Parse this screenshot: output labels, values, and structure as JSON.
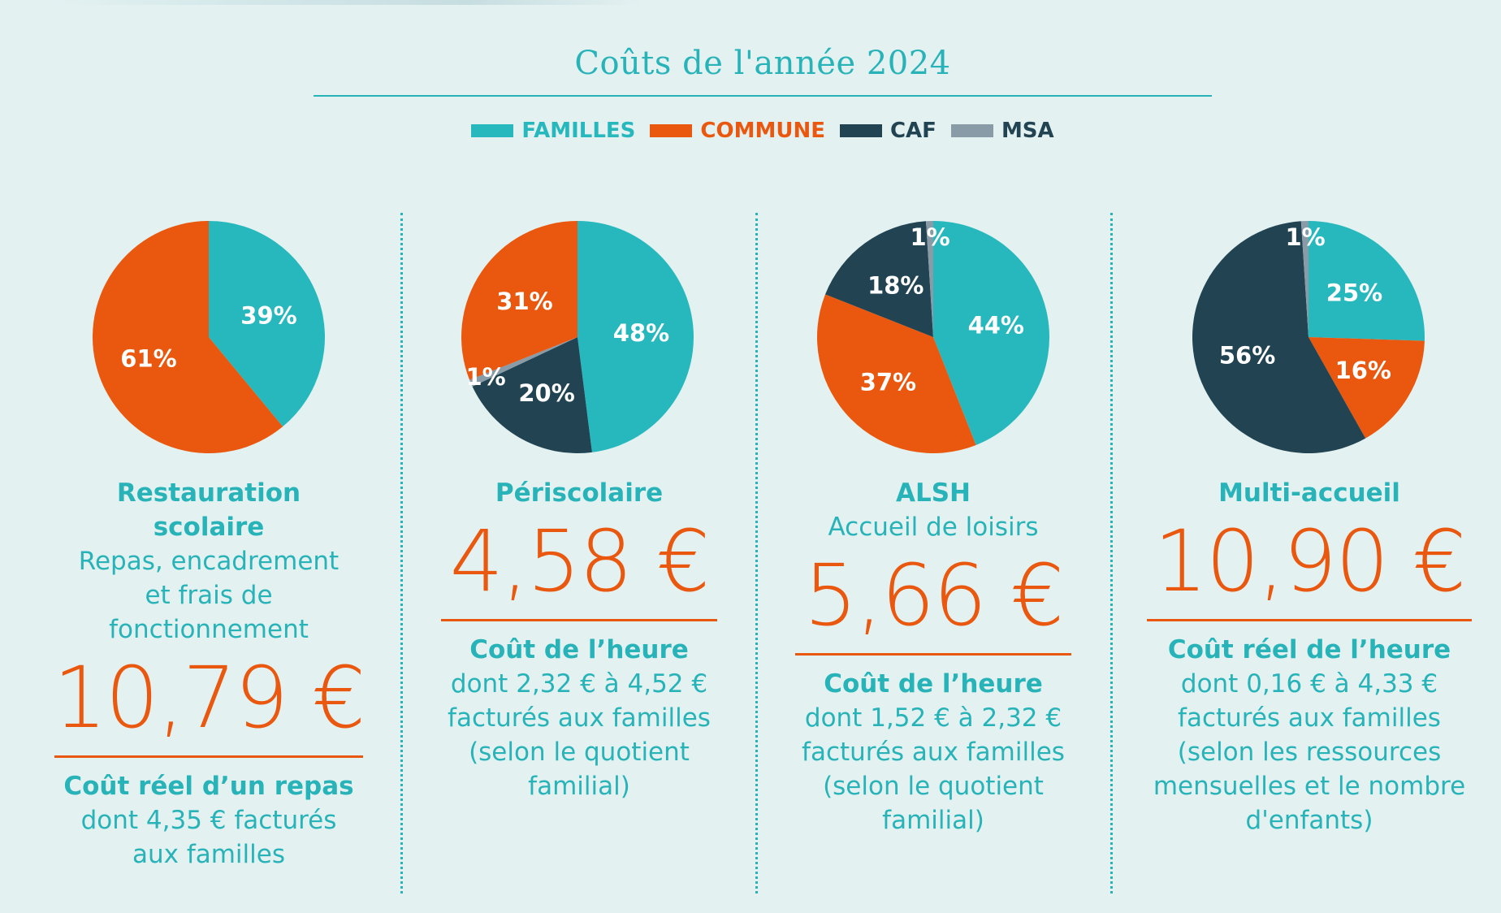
{
  "title": "Coûts de l'année 2024",
  "legend": [
    {
      "label": "FAMILLES",
      "color": "#27b8bd"
    },
    {
      "label": "COMMUNE",
      "color": "#e9580e"
    },
    {
      "label": "CAF",
      "color": "#214352"
    },
    {
      "label": "MSA",
      "color": "#8a9ba8"
    }
  ],
  "panels": [
    {
      "name": "Restauration scolaire",
      "subtitle": "Repas, encadrement et frais de fonctionnement",
      "price": "10,79 €",
      "caption": "Coût réel d’un repas",
      "detail": "dont 4,35 € facturés aux familles"
    },
    {
      "name": "Périscolaire",
      "subtitle": "",
      "price": "4,58 €",
      "caption": "Coût de l’heure",
      "detail": "dont 2,32 € à 4,52 € facturés aux familles (selon le quotient familial)"
    },
    {
      "name": "ALSH",
      "subtitle": "Accueil de loisirs",
      "price": "5,66 €",
      "caption": "Coût de l’heure",
      "detail": "dont 1,52 € à 2,32 € facturés aux familles (selon le quotient familial)"
    },
    {
      "name": "Multi-accueil",
      "subtitle": "",
      "price": "10,90 €",
      "caption": "Coût réel de l’heure",
      "detail": "dont 0,16 € à 4,33 € facturés aux familles (selon les ressources mensuelles et le nombre d'enfants)"
    }
  ],
  "chart_data": [
    {
      "type": "pie",
      "title": "Restauration scolaire",
      "slices": [
        {
          "label": "FAMILLES",
          "value": 39,
          "text": "39%"
        },
        {
          "label": "COMMUNE",
          "value": 61,
          "text": "61%"
        }
      ]
    },
    {
      "type": "pie",
      "title": "Périscolaire",
      "slices": [
        {
          "label": "FAMILLES",
          "value": 48,
          "text": "48%"
        },
        {
          "label": "CAF",
          "value": 20,
          "text": "20%"
        },
        {
          "label": "MSA",
          "value": 1,
          "text": "1%"
        },
        {
          "label": "COMMUNE",
          "value": 31,
          "text": "31%"
        }
      ]
    },
    {
      "type": "pie",
      "title": "ALSH",
      "slices": [
        {
          "label": "FAMILLES",
          "value": 44,
          "text": "44%"
        },
        {
          "label": "COMMUNE",
          "value": 37,
          "text": "37%"
        },
        {
          "label": "CAF",
          "value": 18,
          "text": "18%"
        },
        {
          "label": "MSA",
          "value": 1,
          "text": "1%"
        }
      ]
    },
    {
      "type": "pie",
      "title": "Multi-accueil",
      "slices": [
        {
          "label": "FAMILLES",
          "value": 25,
          "text": "25%"
        },
        {
          "label": "COMMUNE",
          "value": 16,
          "text": "16%"
        },
        {
          "label": "CAF",
          "value": 56,
          "text": "56%"
        },
        {
          "label": "MSA",
          "value": 1,
          "text": "1%"
        }
      ]
    }
  ]
}
